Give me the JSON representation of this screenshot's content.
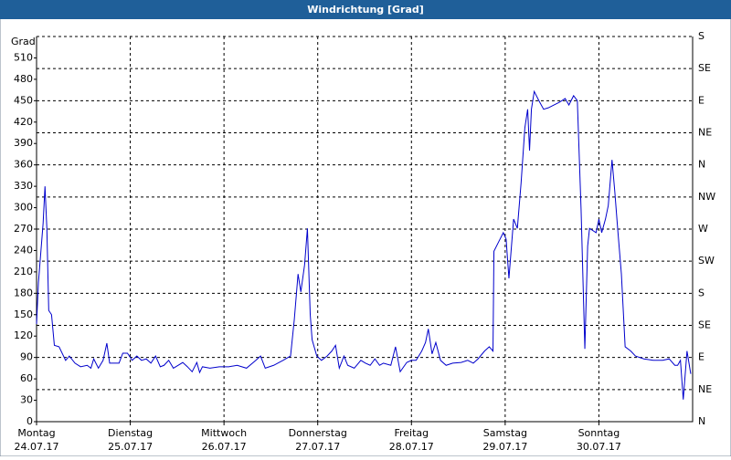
{
  "chart_data": {
    "type": "line",
    "title": "Windrichtung [Grad]",
    "y_label": "Grad",
    "xlim": [
      0,
      7
    ],
    "xticks": [
      {
        "value": 0,
        "label": [
          "Montag",
          "24.07.17"
        ]
      },
      {
        "value": 1,
        "label": [
          "Dienstag",
          "25.07.17"
        ]
      },
      {
        "value": 2,
        "label": [
          "Mittwoch",
          "26.07.17"
        ]
      },
      {
        "value": 3,
        "label": [
          "Donnerstag",
          "27.07.17"
        ]
      },
      {
        "value": 4,
        "label": [
          "Freitag",
          "28.07.17"
        ]
      },
      {
        "value": 5,
        "label": [
          "Samstag",
          "29.07.17"
        ]
      },
      {
        "value": 6,
        "label": [
          "Sonntag",
          "30.07.17"
        ]
      }
    ],
    "ylim": [
      0,
      540
    ],
    "yticks": [
      0,
      30,
      60,
      90,
      120,
      150,
      180,
      210,
      240,
      270,
      300,
      330,
      360,
      390,
      420,
      450,
      480,
      510
    ],
    "y2lim": [
      0,
      540
    ],
    "y2ticks": [
      {
        "value": 0,
        "label": "N"
      },
      {
        "value": 45,
        "label": "NE"
      },
      {
        "value": 90,
        "label": "E"
      },
      {
        "value": 135,
        "label": "SE"
      },
      {
        "value": 180,
        "label": "S"
      },
      {
        "value": 225,
        "label": "SW"
      },
      {
        "value": 270,
        "label": "W"
      },
      {
        "value": 315,
        "label": "NW"
      },
      {
        "value": 360,
        "label": "N"
      },
      {
        "value": 405,
        "label": "NE"
      },
      {
        "value": 450,
        "label": "E"
      },
      {
        "value": 495,
        "label": "SE"
      },
      {
        "value": 540,
        "label": "S"
      }
    ],
    "grid": true,
    "series": [
      {
        "color": "#0000cc",
        "x": [
          0,
          0.02,
          0.07,
          0.09,
          0.11,
          0.13,
          0.16,
          0.19,
          0.24,
          0.31,
          0.35,
          0.41,
          0.47,
          0.54,
          0.58,
          0.61,
          0.66,
          0.71,
          0.75,
          0.78,
          0.83,
          0.88,
          0.92,
          0.97,
          1.02,
          1.07,
          1.12,
          1.17,
          1.22,
          1.27,
          1.32,
          1.36,
          1.41,
          1.46,
          1.51,
          1.56,
          1.61,
          1.66,
          1.71,
          1.74,
          1.77,
          1.85,
          1.95,
          2.05,
          2.14,
          2.24,
          2.34,
          2.39,
          2.44,
          2.53,
          2.63,
          2.71,
          2.75,
          2.79,
          2.82,
          2.86,
          2.89,
          2.92,
          2.94,
          2.99,
          3.04,
          3.1,
          3.15,
          3.19,
          3.23,
          3.28,
          3.32,
          3.39,
          3.46,
          3.51,
          3.56,
          3.61,
          3.66,
          3.7,
          3.78,
          3.83,
          3.88,
          3.95,
          4.0,
          4.05,
          4.11,
          4.15,
          4.18,
          4.22,
          4.26,
          4.31,
          4.37,
          4.44,
          4.53,
          4.6,
          4.66,
          4.71,
          4.78,
          4.83,
          4.87,
          4.88,
          4.93,
          4.98,
          5.01,
          5.04,
          5.09,
          5.13,
          5.17,
          5.21,
          5.24,
          5.26,
          5.28,
          5.31,
          5.36,
          5.41,
          5.46,
          5.52,
          5.58,
          5.64,
          5.68,
          5.73,
          5.77,
          5.81,
          5.85,
          5.88,
          5.9,
          5.97,
          6.0,
          6.03,
          6.07,
          6.1,
          6.14,
          6.17,
          6.2,
          6.24,
          6.28,
          6.34,
          6.39,
          6.48,
          6.58,
          6.68,
          6.75,
          6.81,
          6.84,
          6.87,
          6.9,
          6.94,
          6.98
        ],
        "values": [
          137,
          195,
          278,
          330,
          271,
          156,
          150,
          107,
          105,
          86,
          92,
          82,
          77,
          79,
          75,
          88,
          75,
          86,
          110,
          82,
          82,
          82,
          96,
          96,
          86,
          92,
          86,
          88,
          82,
          92,
          77,
          79,
          86,
          75,
          79,
          83,
          77,
          70,
          83,
          69,
          77,
          75,
          77,
          77,
          79,
          75,
          86,
          92,
          75,
          79,
          86,
          92,
          143,
          207,
          182,
          220,
          271,
          150,
          115,
          92,
          86,
          92,
          99,
          107,
          75,
          92,
          79,
          75,
          86,
          82,
          79,
          88,
          79,
          82,
          79,
          105,
          70,
          83,
          86,
          86,
          99,
          111,
          130,
          95,
          111,
          86,
          79,
          82,
          83,
          86,
          82,
          88,
          99,
          105,
          99,
          239,
          252,
          265,
          256,
          201,
          284,
          271,
          335,
          412,
          438,
          380,
          438,
          463,
          450,
          438,
          440,
          444,
          448,
          453,
          444,
          457,
          450,
          297,
          102,
          246,
          271,
          265,
          284,
          265,
          284,
          303,
          367,
          322,
          271,
          207,
          105,
          99,
          92,
          88,
          86,
          86,
          88,
          79,
          79,
          86,
          31,
          99,
          67
        ]
      }
    ]
  }
}
